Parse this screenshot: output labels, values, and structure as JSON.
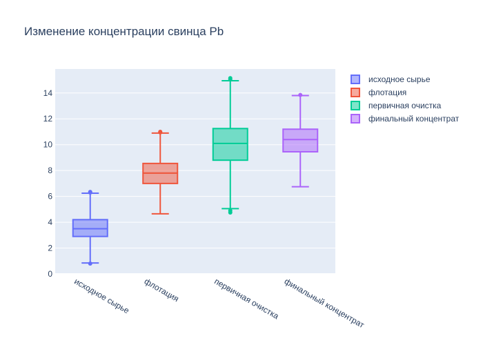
{
  "chart_data": {
    "type": "box",
    "title": "Изменение концентрации свинца Pb",
    "xlabel": "",
    "ylabel": "",
    "ylim": [
      0,
      15.6
    ],
    "yticks": [
      "0",
      "2",
      "4",
      "6",
      "8",
      "10",
      "12",
      "14"
    ],
    "grid": true,
    "legend_position": "top-right",
    "categories": [
      "исходное сырье",
      "флотация",
      "первичная очистка",
      "финальный концентрат"
    ],
    "series": [
      {
        "name": "исходное сырье",
        "color": "#636efa",
        "fill": "rgba(99,110,250,0.5)",
        "min": 0.85,
        "q1": 2.9,
        "median": 3.5,
        "q3": 4.2,
        "max": 6.25,
        "outliers": [
          0.8,
          6.3,
          6.35
        ]
      },
      {
        "name": "флотация",
        "color": "#ef553b",
        "fill": "rgba(239,85,59,0.5)",
        "min": 4.65,
        "q1": 7.0,
        "median": 7.8,
        "q3": 8.55,
        "max": 10.9,
        "outliers": [
          10.95,
          11.0
        ]
      },
      {
        "name": "первичная очистка",
        "color": "#00cc96",
        "fill": "rgba(0,204,150,0.5)",
        "min": 5.05,
        "q1": 8.8,
        "median": 10.1,
        "q3": 11.25,
        "max": 14.95,
        "outliers": [
          4.75,
          4.9,
          15.05,
          15.15
        ]
      },
      {
        "name": "финальный концентрат",
        "color": "#ab63fa",
        "fill": "rgba(171,99,250,0.5)",
        "min": 6.75,
        "q1": 9.45,
        "median": 10.4,
        "q3": 11.2,
        "max": 13.8,
        "outliers": [
          13.85
        ]
      }
    ]
  }
}
